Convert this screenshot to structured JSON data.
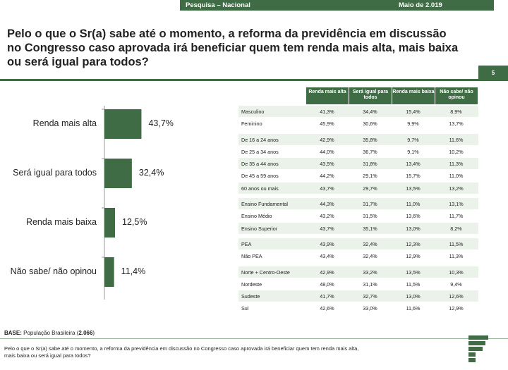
{
  "header": {
    "left": "Pesquisa – Nacional",
    "right": "Maio de 2.019"
  },
  "question": "Pelo o que o Sr(a) sabe até o momento, a reforma da previdência em discussão no Congresso caso aprovada irá beneficiar quem tem renda mais alta, mais baixa ou será igual para todos?",
  "page_number": "5",
  "colors": {
    "brand": "#3f6b45",
    "bar": "#3f6b45",
    "row_tint": "#eaf2ea"
  },
  "chart_data": {
    "type": "bar",
    "orientation": "horizontal",
    "categories": [
      "Renda mais alta",
      "Será igual para todos",
      "Renda mais baixa",
      "Não sabe/ não opinou"
    ],
    "values": [
      43.7,
      32.4,
      12.5,
      11.4
    ],
    "value_labels": [
      "43,7%",
      "32,4%",
      "12,5%",
      "11,4%"
    ],
    "unit": "%"
  },
  "table": {
    "columns": [
      "Renda mais alta",
      "Será igual para todos",
      "Renda mais baixa",
      "Não sabe/ não opinou"
    ],
    "groups": [
      {
        "rows": [
          {
            "label": "Masculino",
            "values": [
              "41,3%",
              "34,4%",
              "15,4%",
              "8,9%"
            ]
          },
          {
            "label": "Feminino",
            "values": [
              "45,9%",
              "30,6%",
              "9,9%",
              "13,7%"
            ]
          }
        ]
      },
      {
        "rows": [
          {
            "label": "De 16 a 24 anos",
            "values": [
              "42,9%",
              "35,8%",
              "9,7%",
              "11,6%"
            ]
          },
          {
            "label": "De 25 a 34 anos",
            "values": [
              "44,0%",
              "36,7%",
              "9,1%",
              "10,2%"
            ]
          },
          {
            "label": "De 35 a 44 anos",
            "values": [
              "43,5%",
              "31,8%",
              "13,4%",
              "11,3%"
            ]
          },
          {
            "label": "De 45 a 59 anos",
            "values": [
              "44,2%",
              "29,1%",
              "15,7%",
              "11,0%"
            ]
          },
          {
            "label": "60 anos ou mais",
            "values": [
              "43,7%",
              "29,7%",
              "13,5%",
              "13,2%"
            ]
          }
        ]
      },
      {
        "rows": [
          {
            "label": "Ensino Fundamental",
            "values": [
              "44,3%",
              "31,7%",
              "11,0%",
              "13,1%"
            ]
          },
          {
            "label": "Ensino Médio",
            "values": [
              "43,2%",
              "31,5%",
              "13,6%",
              "11,7%"
            ]
          },
          {
            "label": "Ensino Superior",
            "values": [
              "43,7%",
              "35,1%",
              "13,0%",
              "8,2%"
            ]
          }
        ]
      },
      {
        "rows": [
          {
            "label": "PEA",
            "values": [
              "43,9%",
              "32,4%",
              "12,3%",
              "11,5%"
            ]
          },
          {
            "label": "Não PEA",
            "values": [
              "43,4%",
              "32,4%",
              "12,9%",
              "11,3%"
            ]
          }
        ]
      },
      {
        "rows": [
          {
            "label": "Norte + Centro-Oeste",
            "values": [
              "42,9%",
              "33,2%",
              "13,5%",
              "10,3%"
            ]
          },
          {
            "label": "Nordeste",
            "values": [
              "48,0%",
              "31,1%",
              "11,5%",
              "9,4%"
            ]
          },
          {
            "label": "Sudeste",
            "values": [
              "41,7%",
              "32,7%",
              "13,0%",
              "12,6%"
            ]
          },
          {
            "label": "Sul",
            "values": [
              "42,6%",
              "33,0%",
              "11,6%",
              "12,9%"
            ]
          }
        ]
      }
    ]
  },
  "base": {
    "label": "BASE:",
    "text": "População Brasileira (",
    "count": "2.066",
    "close": ")"
  },
  "footnote": "Pelo o que o Sr(a) sabe até o momento, a reforma da previdência em discussão no Congresso caso aprovada irá beneficiar quem tem renda mais alta, mais baixa ou será igual para todos?"
}
